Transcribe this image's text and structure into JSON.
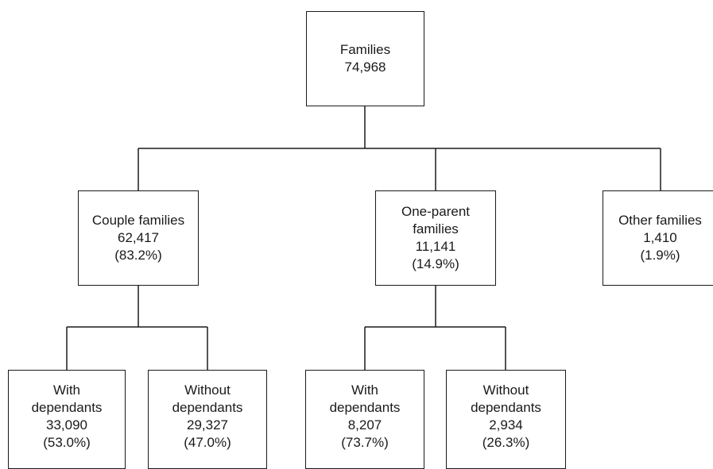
{
  "root": {
    "label": "Families",
    "count": "74,968"
  },
  "level1": {
    "couple": {
      "label": "Couple families",
      "count": "62,417",
      "pct": "(83.2%)"
    },
    "one_parent": {
      "label_line1": "One-parent",
      "label_line2": "families",
      "count": "11,141",
      "pct": "(14.9%)"
    },
    "other": {
      "label": "Other families",
      "count": "1,410",
      "pct": "(1.9%)"
    }
  },
  "level2": {
    "couple_with": {
      "line1": "With",
      "line2": "dependants",
      "count": "33,090",
      "pct": "(53.0%)"
    },
    "couple_without": {
      "line1": "Without",
      "line2": "dependants",
      "count": "29,327",
      "pct": "(47.0%)"
    },
    "one_with": {
      "line1": "With",
      "line2": "dependants",
      "count": "8,207",
      "pct": "(73.7%)"
    },
    "one_without": {
      "line1": "Without",
      "line2": "dependants",
      "count": "2,934",
      "pct": "(26.3%)"
    }
  },
  "colors": {
    "line": "#1a1a1a",
    "background": "#ffffff"
  }
}
